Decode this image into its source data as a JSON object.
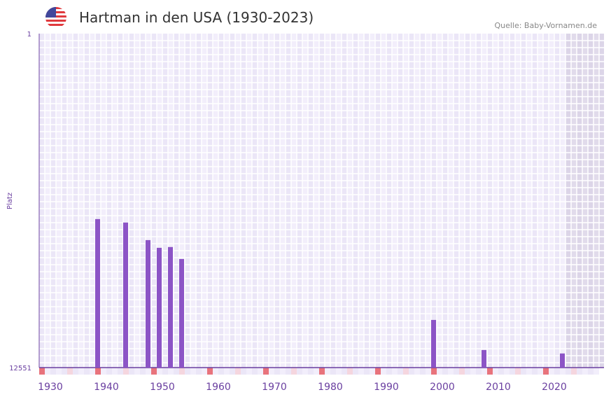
{
  "header": {
    "title": "Hartman in den USA (1930-2023)",
    "source": "Quelle: Baby-Vornamen.de",
    "flag_icon": "us-flag-icon"
  },
  "chart_data": {
    "type": "bar",
    "title": "Hartman in den USA (1930-2023)",
    "ylabel": "Platz",
    "xlabel": "",
    "ylim": [
      1,
      12551
    ],
    "y_inverted": true,
    "y_tick_labels": [
      "1",
      "12551"
    ],
    "xlim": [
      1930,
      2030
    ],
    "x_tick_labels": [
      "1930",
      "1940",
      "1950",
      "1960",
      "1970",
      "1980",
      "1990",
      "2000",
      "2010",
      "2020"
    ],
    "x_ticks": [
      1930,
      1940,
      1950,
      1960,
      1970,
      1980,
      1990,
      2000,
      2010,
      2020
    ],
    "shaded_from": 2024,
    "categories": [
      1940,
      1945,
      1949,
      1951,
      1953,
      1955,
      2000,
      2009,
      2023
    ],
    "values": [
      6970,
      7100,
      7760,
      8050,
      8020,
      8470,
      10760,
      11890,
      12020
    ],
    "bar_color": "#8c54c6",
    "grid": true
  }
}
